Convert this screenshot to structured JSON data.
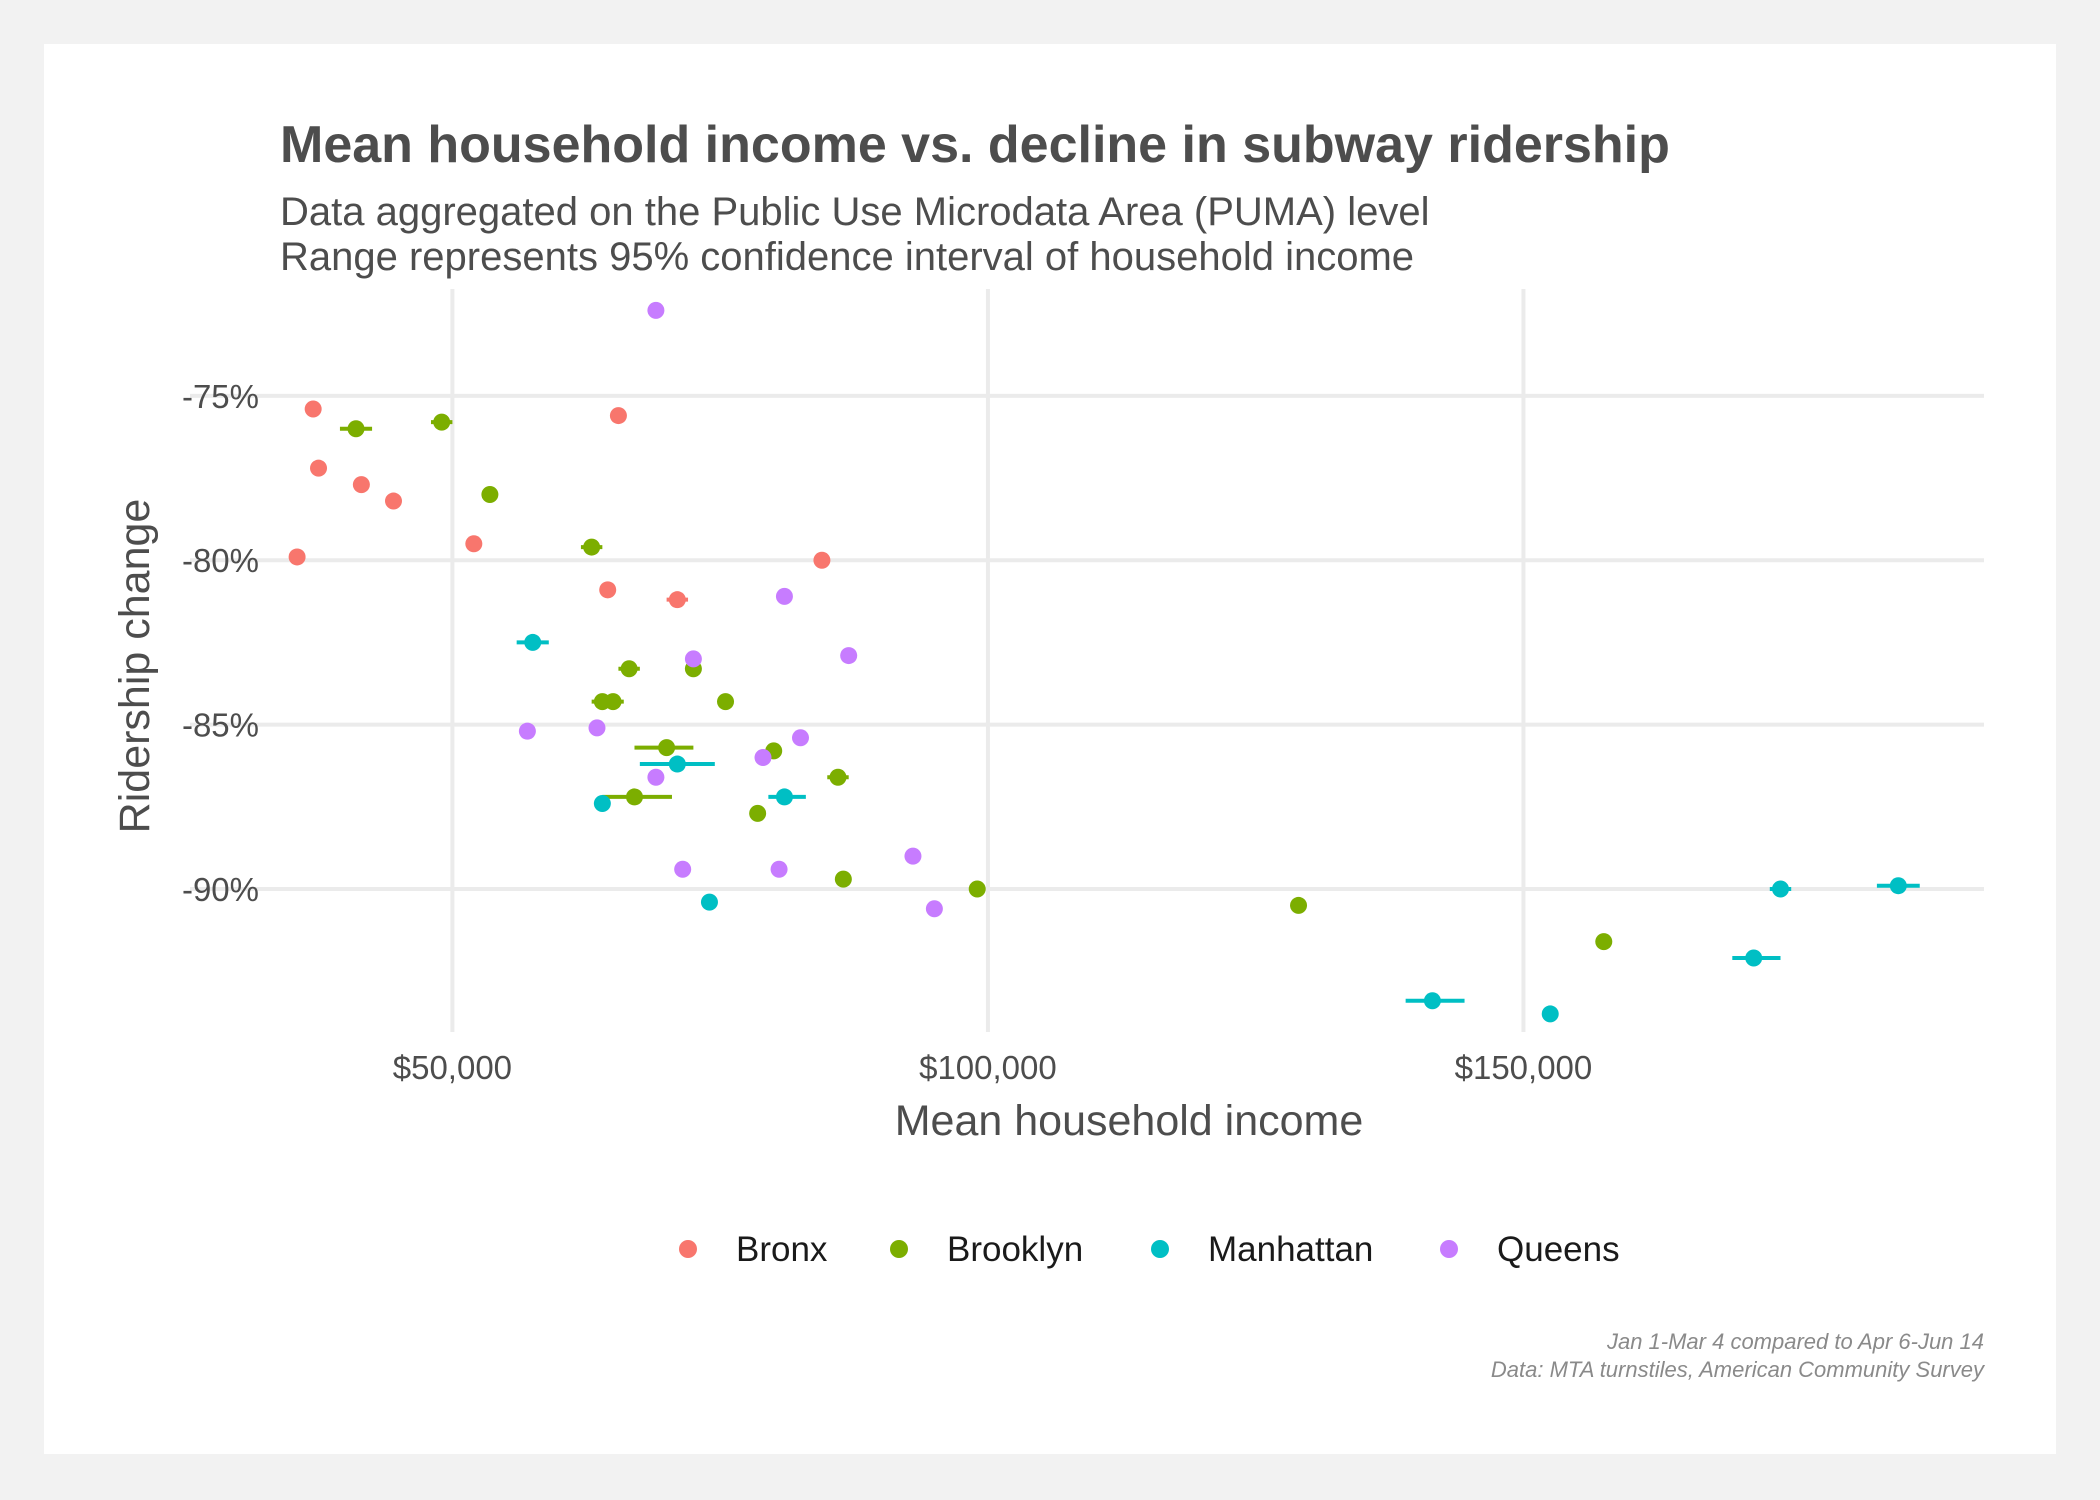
{
  "chart_data": {
    "type": "scatter",
    "title": "Mean household income vs. decline in subway ridership",
    "subtitle": [
      "Data aggregated on the Public Use Microdata Area (PUMA) level",
      "Range represents 95% confidence interval of household income"
    ],
    "xlabel": "Mean household income",
    "ylabel": "Ridership change",
    "xlim": [
      25500,
      193000
    ],
    "ylim": [
      -0.9435,
      -0.7175
    ],
    "x_ticks": [
      50000,
      100000,
      150000
    ],
    "x_tick_labels": [
      "$50,000",
      "$100,000",
      "$150,000"
    ],
    "y_ticks": [
      -0.75,
      -0.8,
      -0.85,
      -0.9
    ],
    "y_tick_labels": [
      "-75%",
      "-80%",
      "-85%",
      "-90%"
    ],
    "grid": true,
    "legend_position": "bottom",
    "caption": [
      "Jan 1-Mar 4 compared to Apr 6-Jun 14",
      "Data: MTA turnstiles, American Community Survey"
    ],
    "series": [
      {
        "name": "Bronx",
        "color": "#f8766d",
        "points": [
          {
            "x": 35500,
            "y": -0.799
          },
          {
            "x": 37000,
            "y": -0.754
          },
          {
            "x": 37500,
            "y": -0.772
          },
          {
            "x": 41500,
            "y": -0.777
          },
          {
            "x": 44500,
            "y": -0.782
          },
          {
            "x": 52000,
            "y": -0.795
          },
          {
            "x": 64500,
            "y": -0.809
          },
          {
            "x": 65500,
            "y": -0.756
          },
          {
            "x": 71000,
            "y": -0.812,
            "lo": 70000,
            "hi": 72000
          },
          {
            "x": 84500,
            "y": -0.8
          }
        ]
      },
      {
        "name": "Brooklyn",
        "color": "#7cae00",
        "points": [
          {
            "x": 41000,
            "y": -0.76,
            "lo": 39500,
            "hi": 42500
          },
          {
            "x": 49000,
            "y": -0.758,
            "lo": 48000,
            "hi": 50000
          },
          {
            "x": 53500,
            "y": -0.78
          },
          {
            "x": 63000,
            "y": -0.796,
            "lo": 62000,
            "hi": 64000
          },
          {
            "x": 64000,
            "y": -0.843,
            "lo": 63000,
            "hi": 65000
          },
          {
            "x": 65000,
            "y": -0.843,
            "lo": 64000,
            "hi": 66000
          },
          {
            "x": 66500,
            "y": -0.833,
            "lo": 65500,
            "hi": 67500
          },
          {
            "x": 67000,
            "y": -0.872,
            "lo": 64000,
            "hi": 70500
          },
          {
            "x": 70000,
            "y": -0.857,
            "lo": 67000,
            "hi": 72500
          },
          {
            "x": 72500,
            "y": -0.833
          },
          {
            "x": 75500,
            "y": -0.843
          },
          {
            "x": 78500,
            "y": -0.877
          },
          {
            "x": 80000,
            "y": -0.858
          },
          {
            "x": 86000,
            "y": -0.866,
            "lo": 85000,
            "hi": 87000
          },
          {
            "x": 86500,
            "y": -0.897
          },
          {
            "x": 99000,
            "y": -0.9
          },
          {
            "x": 129000,
            "y": -0.905
          },
          {
            "x": 157500,
            "y": -0.916
          }
        ]
      },
      {
        "name": "Manhattan",
        "color": "#00bfc4",
        "points": [
          {
            "x": 57500,
            "y": -0.825,
            "lo": 56000,
            "hi": 59000
          },
          {
            "x": 64000,
            "y": -0.874
          },
          {
            "x": 71000,
            "y": -0.862,
            "lo": 67500,
            "hi": 74500
          },
          {
            "x": 74000,
            "y": -0.904
          },
          {
            "x": 81000,
            "y": -0.872,
            "lo": 79500,
            "hi": 83000
          },
          {
            "x": 141500,
            "y": -0.934,
            "lo": 139000,
            "hi": 144500
          },
          {
            "x": 152500,
            "y": -0.938
          },
          {
            "x": 171500,
            "y": -0.921,
            "lo": 169500,
            "hi": 174000
          },
          {
            "x": 174000,
            "y": -0.9,
            "lo": 173000,
            "hi": 175000
          },
          {
            "x": 185000,
            "y": -0.899,
            "lo": 183000,
            "hi": 187000
          }
        ]
      },
      {
        "name": "Queens",
        "color": "#c77cff",
        "points": [
          {
            "x": 57000,
            "y": -0.852
          },
          {
            "x": 63500,
            "y": -0.851
          },
          {
            "x": 69000,
            "y": -0.724
          },
          {
            "x": 69000,
            "y": -0.866
          },
          {
            "x": 71500,
            "y": -0.894
          },
          {
            "x": 72500,
            "y": -0.83
          },
          {
            "x": 79000,
            "y": -0.86
          },
          {
            "x": 80500,
            "y": -0.894
          },
          {
            "x": 81000,
            "y": -0.811
          },
          {
            "x": 82500,
            "y": -0.854
          },
          {
            "x": 87000,
            "y": -0.829
          },
          {
            "x": 93000,
            "y": -0.89
          },
          {
            "x": 95000,
            "y": -0.906
          }
        ]
      }
    ]
  }
}
